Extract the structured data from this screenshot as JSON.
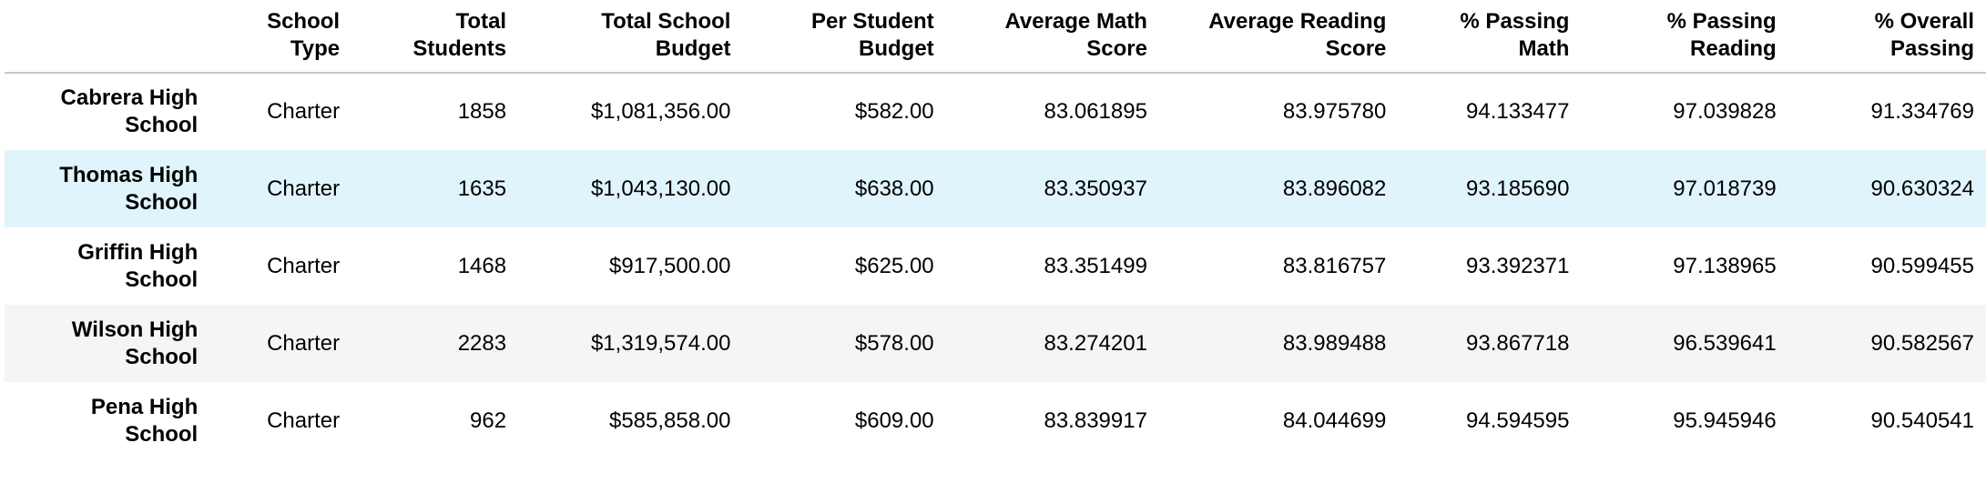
{
  "columns": [
    "",
    "School Type",
    "Total Students",
    "Total School Budget",
    "Per Student Budget",
    "Average Math Score",
    "Average Reading Score",
    "% Passing Math",
    "% Passing Reading",
    "% Overall Passing"
  ],
  "rows": [
    {
      "name": "Cabrera High School",
      "type": "Charter",
      "students": "1858",
      "total_budget": "$1,081,356.00",
      "per_student": "$582.00",
      "avg_math": "83.061895",
      "avg_reading": "83.975780",
      "pass_math": "94.133477",
      "pass_reading": "97.039828",
      "overall": "91.334769"
    },
    {
      "name": "Thomas High School",
      "type": "Charter",
      "students": "1635",
      "total_budget": "$1,043,130.00",
      "per_student": "$638.00",
      "avg_math": "83.350937",
      "avg_reading": "83.896082",
      "pass_math": "93.185690",
      "pass_reading": "97.018739",
      "overall": "90.630324"
    },
    {
      "name": "Griffin High School",
      "type": "Charter",
      "students": "1468",
      "total_budget": "$917,500.00",
      "per_student": "$625.00",
      "avg_math": "83.351499",
      "avg_reading": "83.816757",
      "pass_math": "93.392371",
      "pass_reading": "97.138965",
      "overall": "90.599455"
    },
    {
      "name": "Wilson High School",
      "type": "Charter",
      "students": "2283",
      "total_budget": "$1,319,574.00",
      "per_student": "$578.00",
      "avg_math": "83.274201",
      "avg_reading": "83.989488",
      "pass_math": "93.867718",
      "pass_reading": "96.539641",
      "overall": "90.582567"
    },
    {
      "name": "Pena High School",
      "type": "Charter",
      "students": "962",
      "total_budget": "$585,858.00",
      "per_student": "$609.00",
      "avg_math": "83.839917",
      "avg_reading": "84.044699",
      "pass_math": "94.594595",
      "pass_reading": "95.945946",
      "overall": "90.540541"
    }
  ]
}
